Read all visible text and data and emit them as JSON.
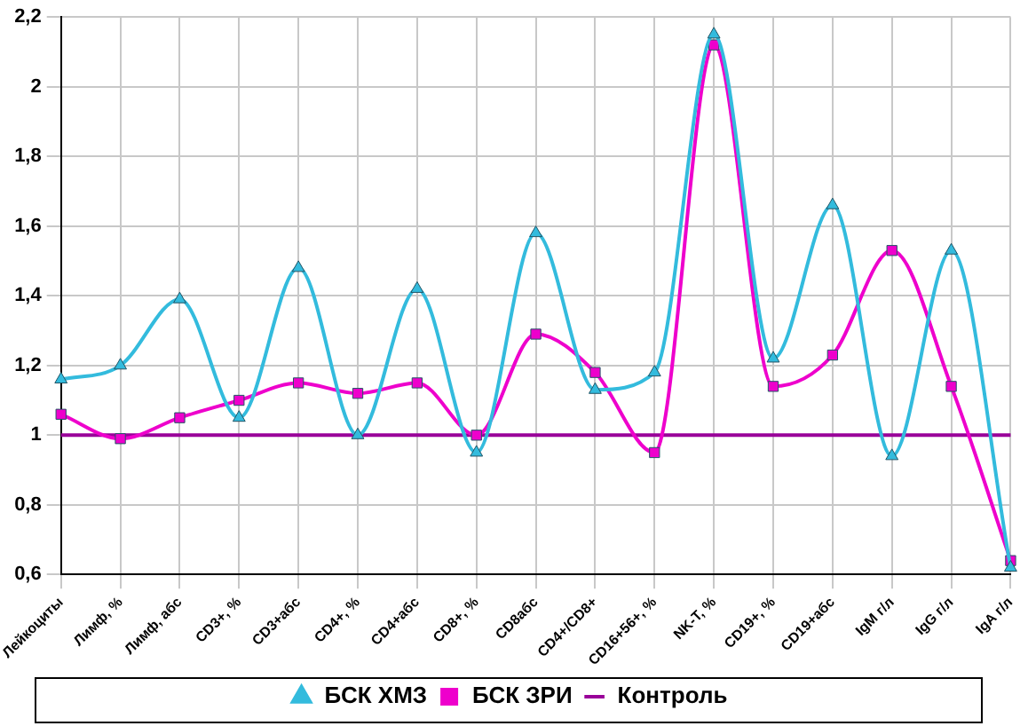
{
  "chart_data": {
    "type": "line",
    "categories": [
      "Лейкоциты",
      "Лимф, %",
      "Лимф, абс",
      "CD3+, %",
      "CD3+абс",
      "CD4+, %",
      "CD4+абс",
      "CD8+, %",
      "CD8абс",
      "CD4+/CD8+",
      "CD16+56+, %",
      "NK-T, %",
      "CD19+, %",
      "CD19+абс",
      "IgM г/л",
      "IgG г/л",
      "IgA г/л"
    ],
    "series": [
      {
        "name": "БСК ХМЗ",
        "color": "#33bbdd",
        "marker": "triangle",
        "values": [
          1.16,
          1.2,
          1.39,
          1.05,
          1.48,
          1.0,
          1.42,
          0.95,
          1.58,
          1.13,
          1.18,
          2.15,
          1.22,
          1.66,
          0.94,
          1.53,
          0.62
        ]
      },
      {
        "name": "БСК ЗРИ",
        "color": "#ee00cc",
        "marker": "square",
        "values": [
          1.06,
          0.99,
          1.05,
          1.1,
          1.15,
          1.12,
          1.15,
          1.0,
          1.29,
          1.18,
          0.95,
          2.12,
          1.14,
          1.23,
          1.53,
          1.14,
          0.64
        ]
      },
      {
        "name": "Контроль",
        "color": "#990099",
        "marker": "none",
        "values": [
          1,
          1,
          1,
          1,
          1,
          1,
          1,
          1,
          1,
          1,
          1,
          1,
          1,
          1,
          1,
          1,
          1
        ]
      }
    ],
    "ylim": [
      0.6,
      2.2
    ],
    "yticks": [
      {
        "value": 0.6,
        "label": "0,6"
      },
      {
        "value": 0.8,
        "label": "0,8"
      },
      {
        "value": 1,
        "label": "1"
      },
      {
        "value": 1.2,
        "label": "1,2"
      },
      {
        "value": 1.4,
        "label": "1,4"
      },
      {
        "value": 1.6,
        "label": "1,6"
      },
      {
        "value": 1.8,
        "label": "1,8"
      },
      {
        "value": 2,
        "label": "2"
      },
      {
        "value": 2.2,
        "label": "2,2"
      }
    ],
    "grid": true,
    "legend": "bottom"
  }
}
